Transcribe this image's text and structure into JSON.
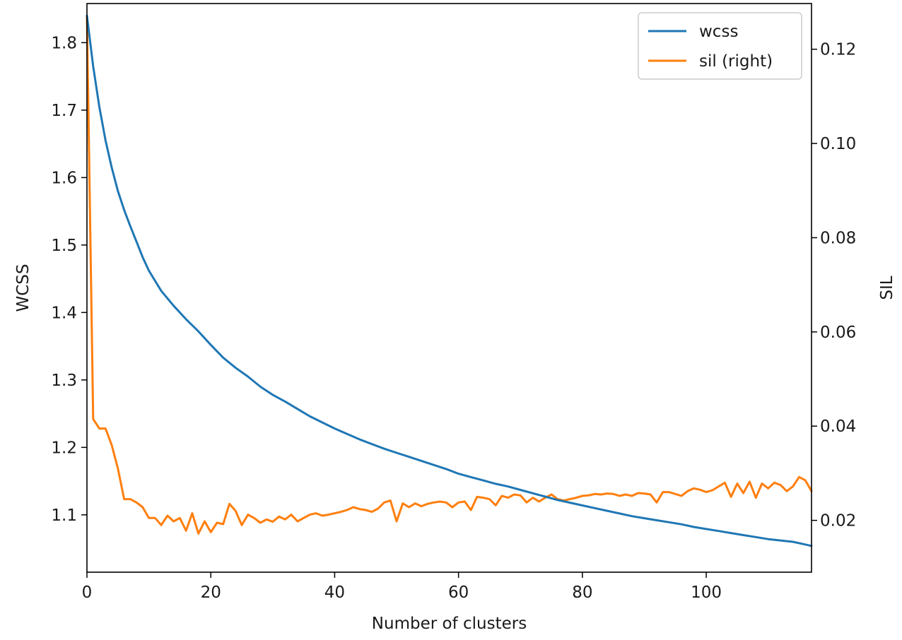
{
  "chart_data": {
    "type": "line",
    "xlabel": "Number of clusters",
    "ylabel": "WCSS",
    "ylabel_right": "SIL",
    "xlim": [
      0,
      117
    ],
    "ylim": [
      1.015,
      1.858
    ],
    "ylim_right": [
      0.009,
      0.1297
    ],
    "x_ticks": [
      0,
      20,
      40,
      60,
      80,
      100
    ],
    "x_tick_labels": [
      "0",
      "20",
      "40",
      "60",
      "80",
      "100"
    ],
    "y_ticks": [
      1.1,
      1.2,
      1.3,
      1.4,
      1.5,
      1.6,
      1.7,
      1.8
    ],
    "y_tick_labels": [
      "1.1",
      "1.2",
      "1.3",
      "1.4",
      "1.5",
      "1.6",
      "1.7",
      "1.8"
    ],
    "y_right_ticks": [
      0.02,
      0.04,
      0.06,
      0.08,
      0.1,
      0.12
    ],
    "y_right_tick_labels": [
      "0.02",
      "0.04",
      "0.06",
      "0.08",
      "0.10",
      "0.12"
    ],
    "grid": false,
    "legend_position": "top-right",
    "series": [
      {
        "name": "wcss",
        "axis": "left",
        "color": "#1f77b4",
        "x": [
          0,
          1,
          2,
          3,
          4,
          5,
          6,
          7,
          8,
          9,
          10,
          12,
          14,
          16,
          18,
          20,
          22,
          24,
          26,
          28,
          30,
          32,
          34,
          36,
          38,
          40,
          42,
          44,
          46,
          48,
          50,
          52,
          54,
          56,
          58,
          60,
          62,
          64,
          66,
          68,
          70,
          72,
          74,
          76,
          78,
          80,
          82,
          84,
          86,
          88,
          90,
          92,
          94,
          96,
          98,
          100,
          102,
          104,
          106,
          108,
          110,
          112,
          114,
          116,
          117
        ],
        "y": [
          1.84,
          1.765,
          1.705,
          1.655,
          1.615,
          1.58,
          1.552,
          1.528,
          1.505,
          1.482,
          1.462,
          1.432,
          1.41,
          1.39,
          1.372,
          1.352,
          1.333,
          1.318,
          1.305,
          1.29,
          1.278,
          1.268,
          1.257,
          1.246,
          1.237,
          1.228,
          1.22,
          1.212,
          1.205,
          1.198,
          1.192,
          1.186,
          1.18,
          1.174,
          1.168,
          1.161,
          1.156,
          1.151,
          1.146,
          1.142,
          1.137,
          1.132,
          1.127,
          1.122,
          1.118,
          1.114,
          1.11,
          1.106,
          1.102,
          1.098,
          1.095,
          1.092,
          1.089,
          1.086,
          1.082,
          1.079,
          1.076,
          1.073,
          1.07,
          1.067,
          1.064,
          1.062,
          1.06,
          1.056,
          1.054
        ]
      },
      {
        "name": "sil (right)",
        "axis": "right",
        "color": "#ff7f0e",
        "x": [
          0,
          1,
          2,
          3,
          4,
          5,
          6,
          7,
          8,
          9,
          10,
          11,
          12,
          13,
          14,
          15,
          16,
          17,
          18,
          19,
          20,
          21,
          22,
          23,
          24,
          25,
          26,
          27,
          28,
          29,
          30,
          31,
          32,
          33,
          34,
          35,
          36,
          37,
          38,
          39,
          40,
          41,
          42,
          43,
          44,
          45,
          46,
          47,
          48,
          49,
          50,
          51,
          52,
          53,
          54,
          55,
          56,
          57,
          58,
          59,
          60,
          61,
          62,
          63,
          64,
          65,
          66,
          67,
          68,
          69,
          70,
          71,
          72,
          73,
          74,
          75,
          76,
          77,
          78,
          79,
          80,
          81,
          82,
          83,
          84,
          85,
          86,
          87,
          88,
          89,
          90,
          91,
          92,
          93,
          94,
          95,
          96,
          97,
          98,
          99,
          100,
          101,
          102,
          103,
          104,
          105,
          106,
          107,
          108,
          109,
          110,
          111,
          112,
          113,
          114,
          115,
          116,
          117
        ],
        "y": [
          0.127,
          0.0415,
          0.0395,
          0.0395,
          0.036,
          0.031,
          0.0245,
          0.0245,
          0.0238,
          0.0228,
          0.0205,
          0.0205,
          0.019,
          0.021,
          0.0198,
          0.0205,
          0.0178,
          0.0215,
          0.0172,
          0.0198,
          0.0175,
          0.0195,
          0.0192,
          0.0235,
          0.022,
          0.019,
          0.0212,
          0.0205,
          0.0195,
          0.0202,
          0.0197,
          0.0208,
          0.0202,
          0.0212,
          0.0198,
          0.0205,
          0.0212,
          0.0215,
          0.021,
          0.0212,
          0.0215,
          0.0218,
          0.0222,
          0.0228,
          0.0224,
          0.0222,
          0.0218,
          0.0225,
          0.0238,
          0.0242,
          0.0198,
          0.0236,
          0.0228,
          0.0236,
          0.023,
          0.0235,
          0.0238,
          0.024,
          0.0238,
          0.0228,
          0.0238,
          0.024,
          0.0222,
          0.025,
          0.0248,
          0.0245,
          0.0232,
          0.0252,
          0.0248,
          0.0255,
          0.0253,
          0.0238,
          0.0248,
          0.024,
          0.0248,
          0.0255,
          0.0245,
          0.0242,
          0.0245,
          0.0248,
          0.0252,
          0.0253,
          0.0256,
          0.0255,
          0.0257,
          0.0256,
          0.0252,
          0.0255,
          0.0252,
          0.0258,
          0.0257,
          0.0255,
          0.0238,
          0.026,
          0.026,
          0.0256,
          0.0252,
          0.0262,
          0.0268,
          0.0265,
          0.026,
          0.0264,
          0.0272,
          0.028,
          0.025,
          0.0278,
          0.0258,
          0.0282,
          0.0248,
          0.0278,
          0.0268,
          0.028,
          0.0275,
          0.0262,
          0.0272,
          0.0292,
          0.0285,
          0.0262
        ]
      }
    ]
  }
}
